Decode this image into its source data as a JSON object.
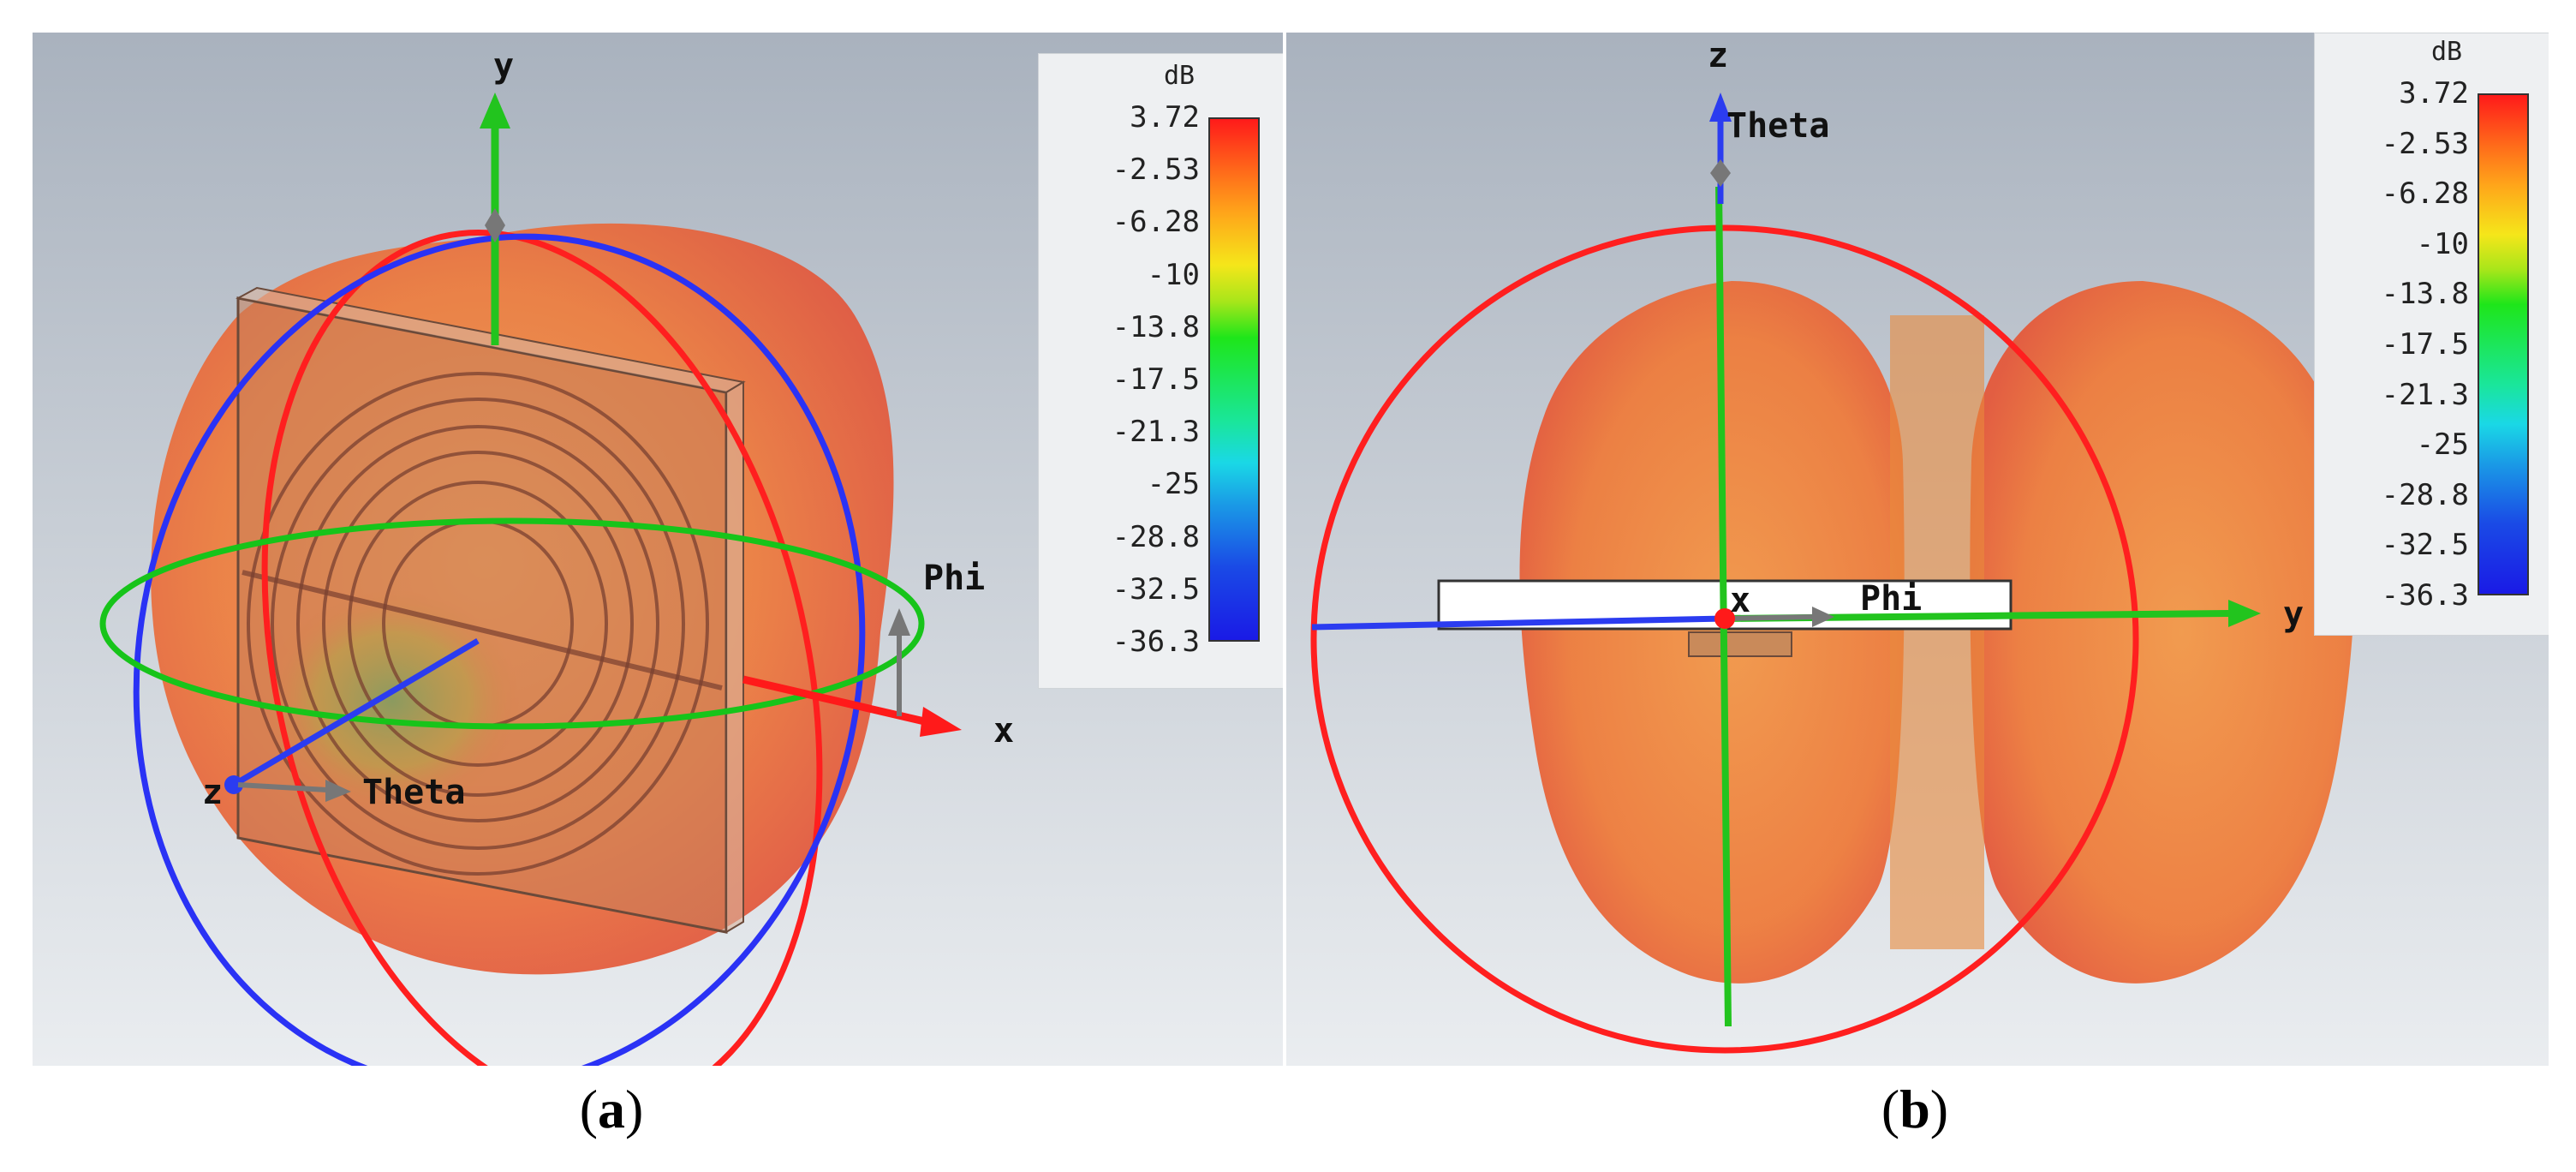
{
  "panels": [
    {
      "id": "a",
      "caption_open": "(",
      "caption_letter": "a",
      "caption_close": ")",
      "axes": {
        "vertical": "y",
        "horizontal": "x",
        "depth": "z",
        "theta": "Theta",
        "phi": "Phi"
      },
      "legend": {
        "unit": "dB",
        "ticks": [
          "3.72",
          "-2.53",
          "-6.28",
          "-10",
          "-13.8",
          "-17.5",
          "-21.3",
          "-25",
          "-28.8",
          "-32.5",
          "-36.3"
        ]
      }
    },
    {
      "id": "b",
      "caption_open": "(",
      "caption_letter": "b",
      "caption_close": ")",
      "axes": {
        "vertical": "z",
        "horizontal": "y",
        "depth": "x",
        "theta": "Theta",
        "phi": "Phi"
      },
      "legend": {
        "unit": "dB",
        "ticks": [
          "3.72",
          "-2.53",
          "-6.28",
          "-10",
          "-13.8",
          "-17.5",
          "-21.3",
          "-25",
          "-28.8",
          "-32.5",
          "-36.3"
        ]
      }
    }
  ],
  "colors": {
    "background_top": "#a9b2be",
    "background_bottom": "#e9ecef",
    "pattern": "#e8743a",
    "axis_x": "#ff1a1a",
    "axis_y": "#22c41e",
    "axis_z": "#2b3cf0",
    "ring_red": "#ff1f1f",
    "ring_green": "#17c41a",
    "ring_blue": "#2a32f5"
  }
}
